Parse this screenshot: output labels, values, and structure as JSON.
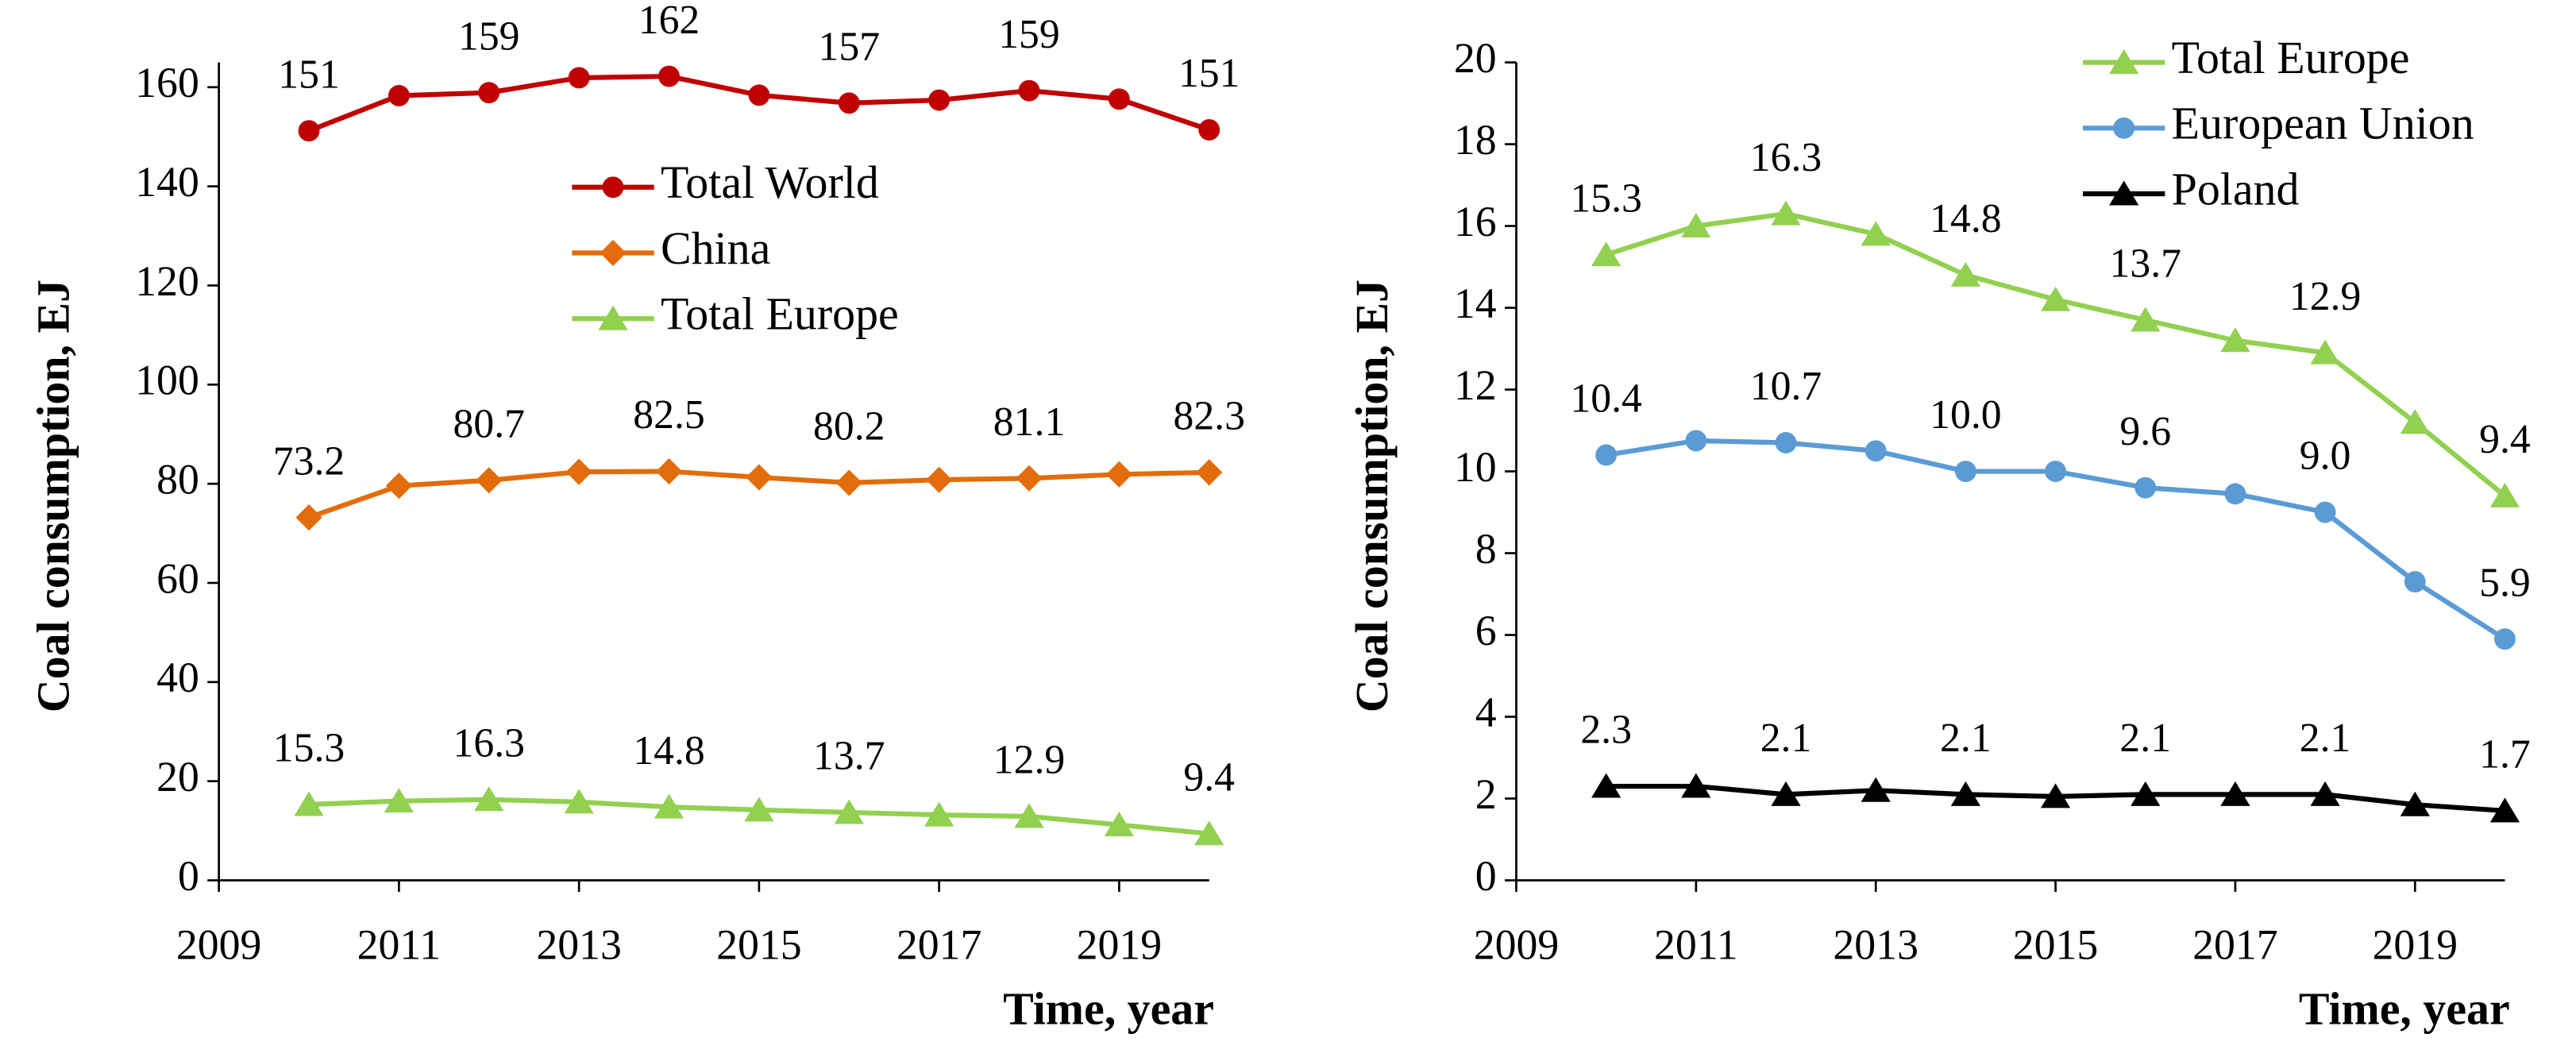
{
  "chart_data": [
    {
      "type": "line",
      "ylabel": "Coal consumption, EJ",
      "xlabel": "Time, year",
      "x": [
        2010,
        2011,
        2012,
        2013,
        2014,
        2015,
        2016,
        2017,
        2018,
        2019,
        2020
      ],
      "xlim": [
        2009,
        2020
      ],
      "xticks": [
        2009,
        2011,
        2013,
        2015,
        2017,
        2019
      ],
      "ylim": [
        0,
        165
      ],
      "yticks": [
        0,
        20,
        40,
        60,
        80,
        100,
        120,
        140,
        160
      ],
      "legend": "center",
      "series": [
        {
          "name": "Total World",
          "color": "#c00000",
          "marker": "circle",
          "values": [
            151.2,
            158.3,
            158.9,
            161.9,
            162.2,
            158.4,
            156.8,
            157.4,
            159.3,
            157.6,
            151.4
          ],
          "value_labels": [
            "151",
            null,
            "159",
            null,
            "162",
            null,
            "157",
            null,
            "159",
            null,
            "151"
          ]
        },
        {
          "name": "China",
          "color": "#e36c0a",
          "marker": "diamond",
          "values": [
            73.2,
            79.6,
            80.7,
            82.4,
            82.5,
            81.3,
            80.2,
            80.8,
            81.1,
            81.9,
            82.3
          ],
          "value_labels": [
            "73.2",
            null,
            "80.7",
            null,
            "82.5",
            null,
            "80.2",
            null,
            "81.1",
            null,
            "82.3"
          ]
        },
        {
          "name": "Total Europe",
          "color": "#92d050",
          "marker": "triangle",
          "values": [
            15.3,
            16.0,
            16.3,
            15.8,
            14.8,
            14.2,
            13.7,
            13.2,
            12.9,
            11.2,
            9.4
          ],
          "value_labels": [
            "15.3",
            null,
            "16.3",
            null,
            "14.8",
            null,
            "13.7",
            null,
            "12.9",
            null,
            "9.4"
          ]
        }
      ]
    },
    {
      "type": "line",
      "ylabel": "Coal consumption, EJ",
      "xlabel": "Time, year",
      "x": [
        2010,
        2011,
        2012,
        2013,
        2014,
        2015,
        2016,
        2017,
        2018,
        2019,
        2020
      ],
      "xlim": [
        2009,
        2020
      ],
      "xticks": [
        2009,
        2011,
        2013,
        2015,
        2017,
        2019
      ],
      "ylim": [
        0,
        20
      ],
      "yticks": [
        0,
        2,
        4,
        6,
        8,
        10,
        12,
        14,
        16,
        18,
        20
      ],
      "legend": "upper right",
      "series": [
        {
          "name": "Total Europe",
          "color": "#92d050",
          "marker": "triangle",
          "values": [
            15.3,
            16.0,
            16.3,
            15.8,
            14.8,
            14.2,
            13.7,
            13.2,
            12.9,
            11.2,
            9.4
          ],
          "value_labels": [
            "15.3",
            null,
            "16.3",
            null,
            "14.8",
            null,
            "13.7",
            null,
            "12.9",
            null,
            "9.4"
          ]
        },
        {
          "name": "European Union",
          "color": "#5b9bd5",
          "marker": "circle",
          "values": [
            10.4,
            10.75,
            10.7,
            10.5,
            10.0,
            10.0,
            9.6,
            9.45,
            9.0,
            7.3,
            5.9
          ],
          "value_labels": [
            "10.4",
            null,
            "10.7",
            null,
            "10.0",
            null,
            "9.6",
            null,
            "9.0",
            null,
            "5.9"
          ]
        },
        {
          "name": "Poland",
          "color": "#000000",
          "marker": "triangle",
          "values": [
            2.3,
            2.3,
            2.1,
            2.2,
            2.1,
            2.05,
            2.1,
            2.1,
            2.1,
            1.85,
            1.7
          ],
          "value_labels": [
            "2.3",
            null,
            "2.1",
            null,
            "2.1",
            null,
            "2.1",
            null,
            "2.1",
            null,
            "1.7"
          ]
        }
      ]
    }
  ]
}
